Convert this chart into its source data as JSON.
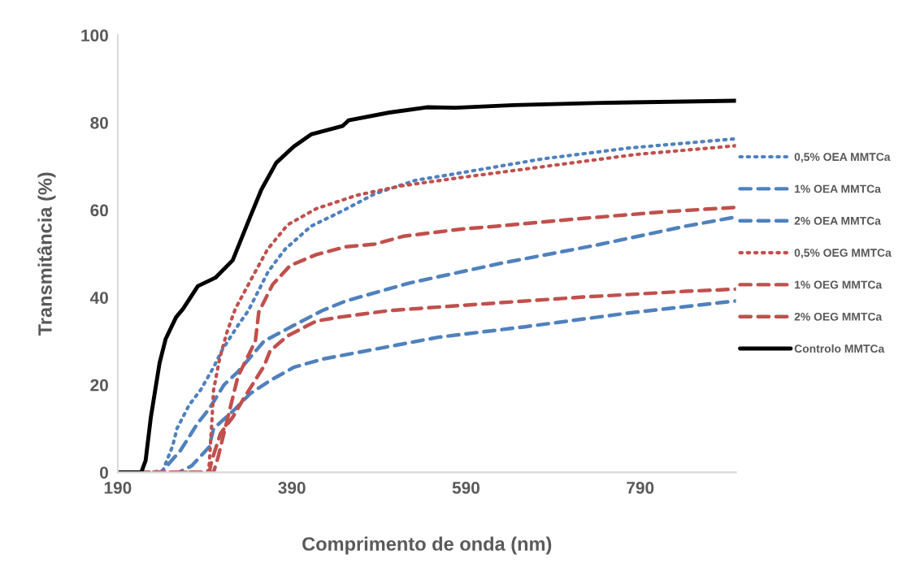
{
  "chart_data": {
    "type": "line",
    "xlabel": "Comprimento de onda (nm)",
    "ylabel": "Transmitância (%)",
    "xlim": [
      190,
      900
    ],
    "xticks": [
      190,
      390,
      590,
      790
    ],
    "ylim": [
      0,
      100
    ],
    "yticks": [
      0,
      20,
      40,
      60,
      80,
      100
    ],
    "grid": false,
    "legend": "right",
    "marker": "none",
    "series": [
      {
        "name": "0,5% OEA MMTCa",
        "color": "#4f81bd",
        "line_style": "dotted",
        "x": [
          190,
          230,
          242,
          253,
          258,
          272,
          285,
          300,
          310,
          328,
          340,
          363,
          382,
          412,
          450,
          485,
          532,
          575,
          678,
          778,
          900
        ],
        "values": [
          0,
          0,
          0.5,
          6,
          10,
          15.4,
          18.8,
          24,
          28,
          33.6,
          37,
          46,
          51,
          56.3,
          60,
          63.7,
          66.8,
          68.2,
          71.7,
          74.2,
          76.3
        ]
      },
      {
        "name": "1% OEA MMTCa",
        "color": "#4f81bd",
        "line_style": "dashed",
        "x": [
          190,
          240,
          262,
          282,
          295,
          312,
          328,
          358,
          392,
          425,
          452,
          525,
          632,
          738,
          842,
          900
        ],
        "values": [
          0,
          0,
          5,
          11.3,
          14.5,
          20,
          23,
          30,
          33.6,
          37,
          39.2,
          43.3,
          47.9,
          51.9,
          56.3,
          58.4
        ]
      },
      {
        "name": "2% OEA MMTCa",
        "color": "#4f81bd",
        "line_style": "dashed",
        "x": [
          190,
          260,
          275,
          295,
          300,
          325,
          342,
          365,
          392,
          425,
          558,
          658,
          775,
          900
        ],
        "values": [
          0,
          0,
          1.5,
          5.8,
          10,
          14.5,
          18,
          21,
          24,
          25.9,
          30.9,
          33.3,
          36.4,
          39.2
        ]
      },
      {
        "name": "0,5% OEG MMTCa",
        "color": "#c0504d",
        "line_style": "dotted",
        "x": [
          190,
          293,
          295,
          298,
          300,
          307,
          315,
          325,
          345,
          362,
          385,
          418,
          465,
          515,
          583,
          678,
          785,
          900
        ],
        "values": [
          0,
          0,
          1.7,
          11.3,
          18.8,
          26,
          31.8,
          37.4,
          44.8,
          51,
          56.6,
          60.3,
          63.4,
          65.5,
          67.4,
          69.9,
          72.7,
          74.7
        ]
      },
      {
        "name": "1% OEG MMTCa",
        "color": "#c0504d",
        "line_style": "dashed",
        "x": [
          190,
          300,
          305,
          312,
          328,
          348,
          352,
          368,
          388,
          418,
          452,
          485,
          518,
          583,
          625,
          725,
          825,
          900
        ],
        "values": [
          0,
          0,
          3.3,
          9,
          21.9,
          30,
          36.7,
          43,
          47.3,
          49.8,
          51.6,
          52.2,
          54,
          55.6,
          56.3,
          58.1,
          59.7,
          60.6
        ]
      },
      {
        "name": "2% OEG MMTCa",
        "color": "#c0504d",
        "line_style": "dashed",
        "x": [
          190,
          295,
          298,
          308,
          322,
          335,
          358,
          365,
          385,
          418,
          445,
          502,
          615,
          725,
          842,
          900
        ],
        "values": [
          0,
          0,
          2.7,
          8.9,
          12.6,
          17,
          24.3,
          27.8,
          31.2,
          34.6,
          35.5,
          37,
          38.6,
          40.1,
          41.4,
          41.9
        ]
      },
      {
        "name": "Controlo MMTCa",
        "color": "#000000",
        "line_style": "solid",
        "x": [
          190,
          217,
          222,
          228,
          238,
          245,
          257,
          265,
          282,
          302,
          322,
          342,
          355,
          372,
          392,
          412,
          448,
          455,
          502,
          545,
          578,
          645,
          745,
          900
        ],
        "values": [
          0,
          0,
          2.7,
          12.6,
          25,
          30.5,
          35.5,
          37.4,
          42.6,
          44.5,
          48.5,
          58.4,
          64.7,
          70.8,
          74.5,
          77.3,
          79.2,
          80.5,
          82.3,
          83.5,
          83.4,
          84,
          84.5,
          85
        ]
      }
    ]
  }
}
